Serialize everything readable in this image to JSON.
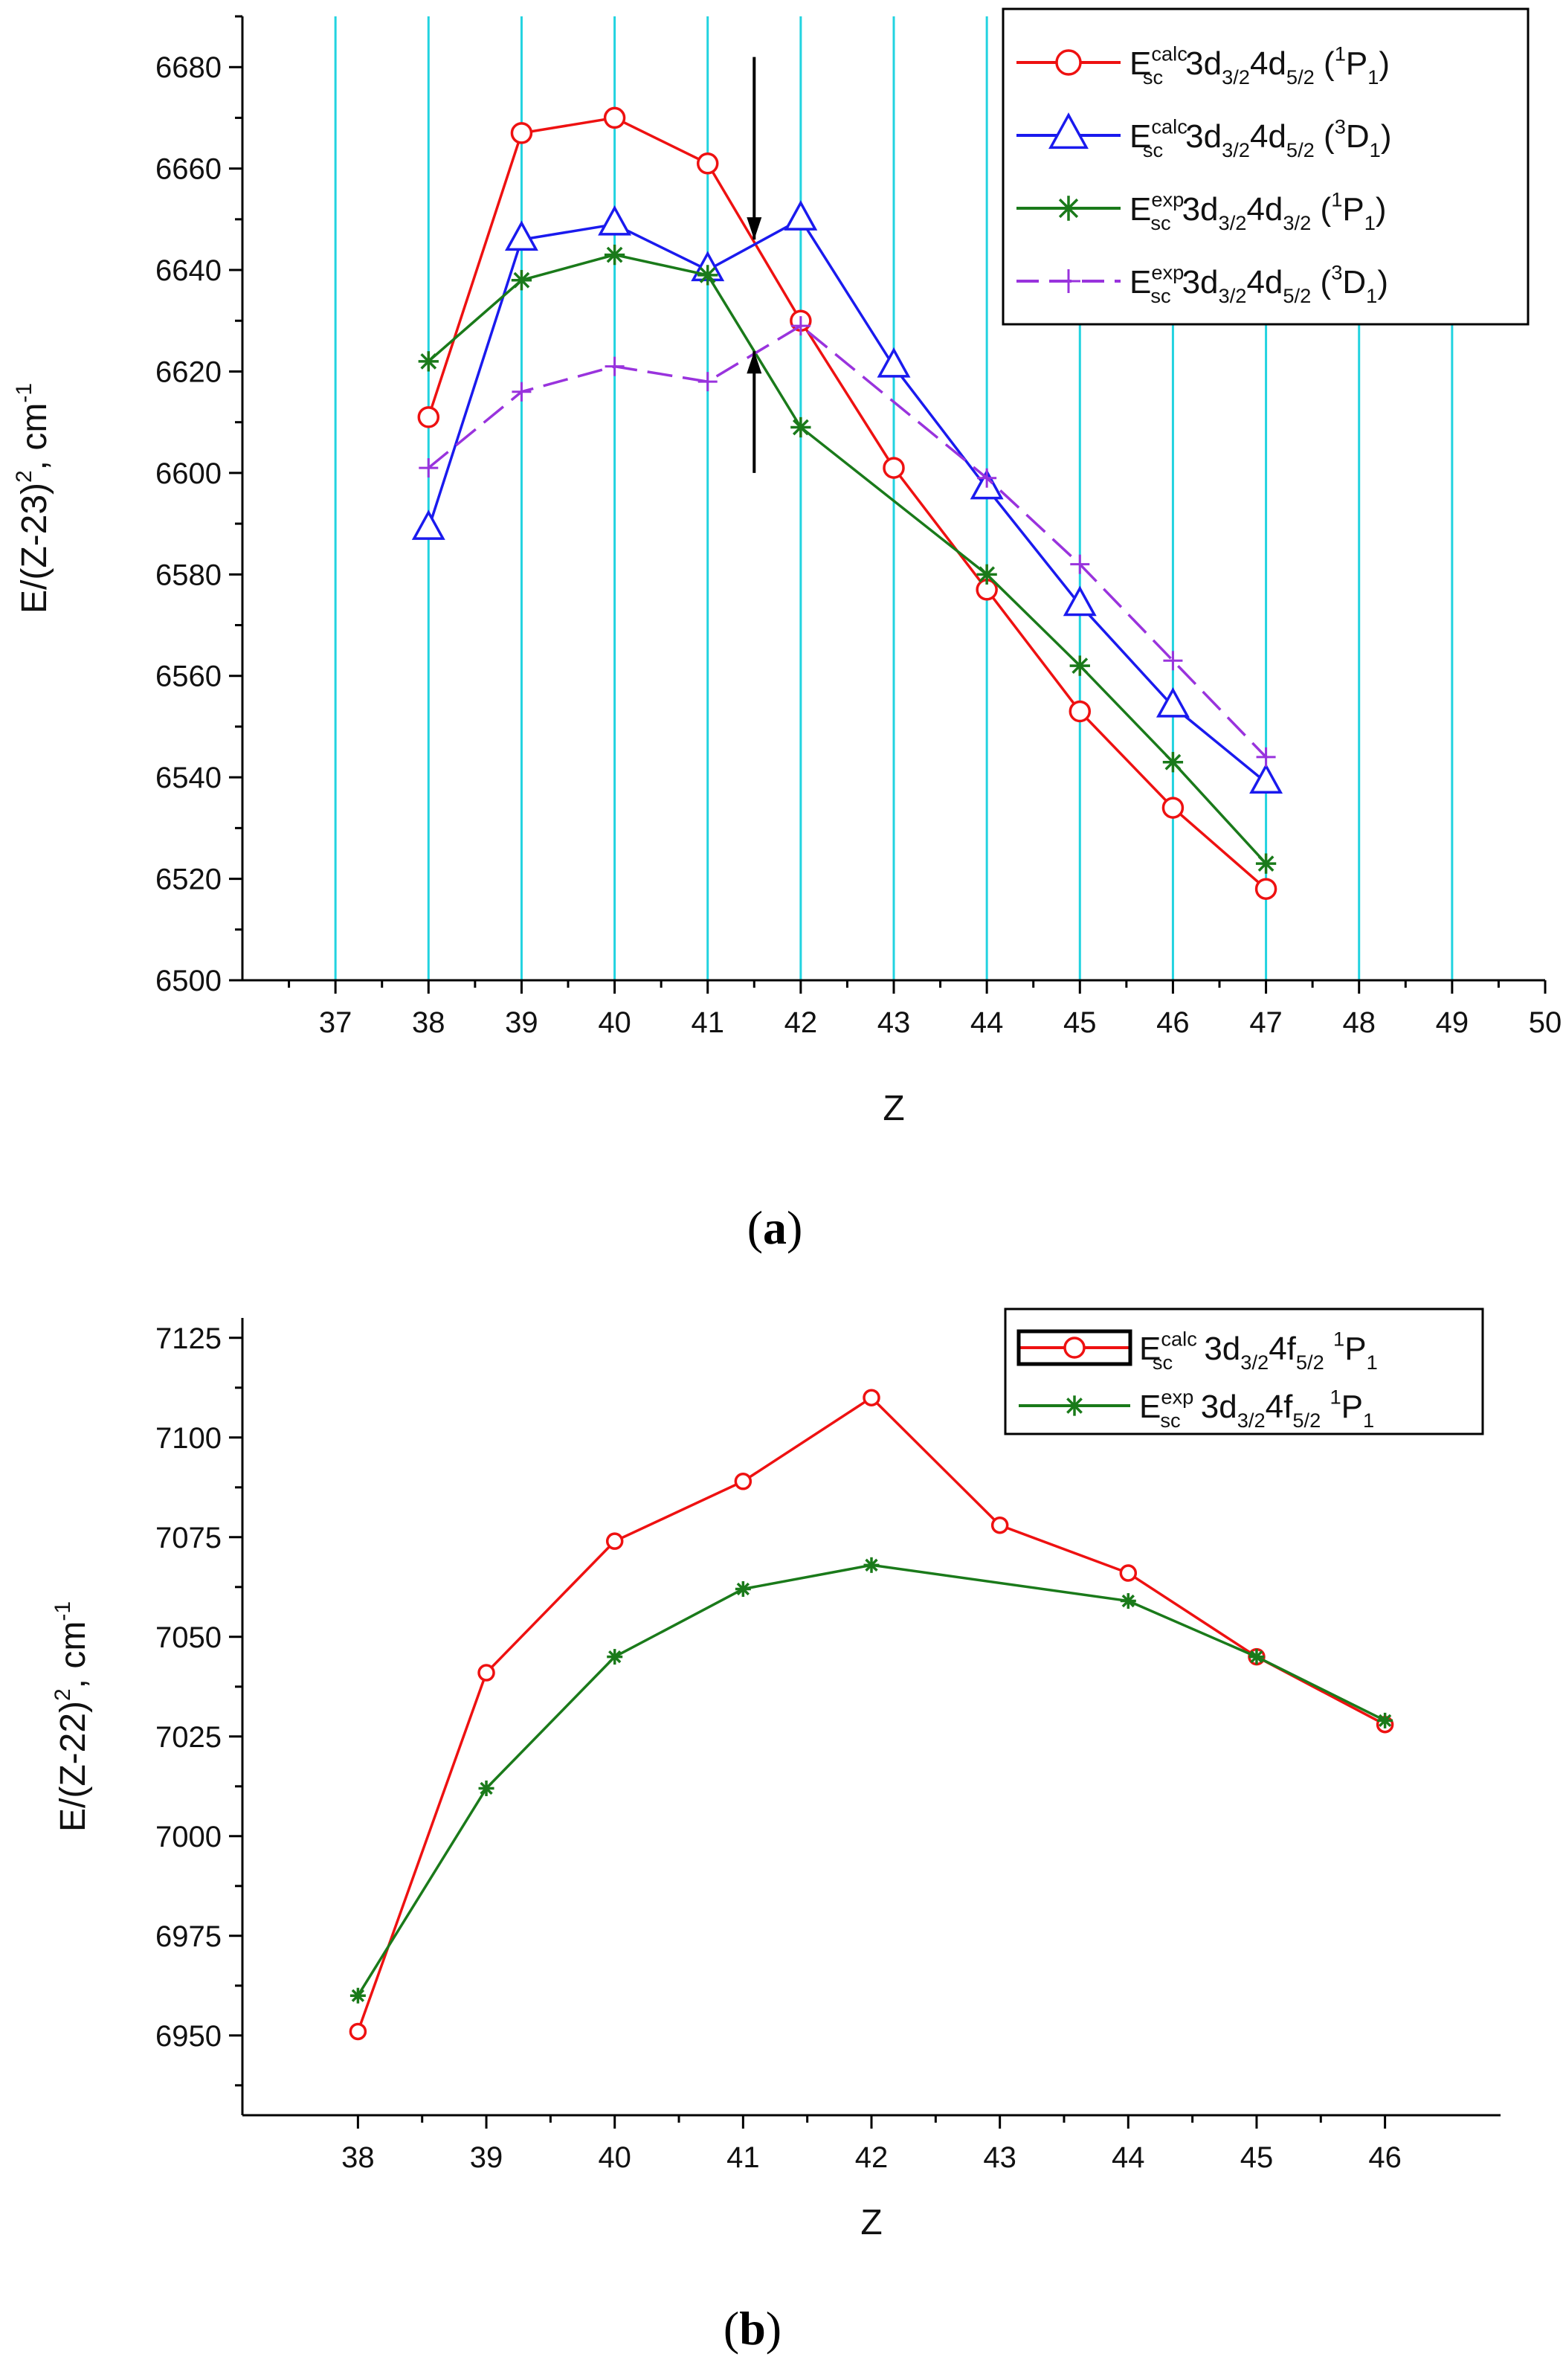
{
  "chart_data": [
    {
      "id": "a",
      "type": "line",
      "caption": {
        "open": "(",
        "letter": "a",
        "close": ")"
      },
      "xlabel": "Z",
      "ylabel": {
        "text": "E/(Z-23)",
        "sup": "2",
        "rest": ", cm",
        "unit_sup": "-1"
      },
      "xlim": [
        36,
        50
      ],
      "ylim": [
        6500,
        6690
      ],
      "xticks": [
        37,
        38,
        39,
        40,
        41,
        42,
        43,
        44,
        45,
        46,
        47,
        48,
        49,
        50
      ],
      "yticks": [
        6500,
        6520,
        6540,
        6560,
        6580,
        6600,
        6620,
        6640,
        6660,
        6680
      ],
      "vertical_grid": [
        37,
        38,
        39,
        40,
        41,
        42,
        43,
        44,
        45,
        46,
        47,
        48,
        49
      ],
      "legend_position": "top-right",
      "annotations": [
        {
          "type": "arrow-down",
          "x": 41.5,
          "y_from": 6682,
          "y_to": 6646
        },
        {
          "type": "arrow-up",
          "x": 41.5,
          "y_from": 6600,
          "y_to": 6624
        }
      ],
      "series": [
        {
          "name": {
            "E": "E",
            "sup": "calc",
            "sub": "sc",
            "cfg": "3d",
            "s1": "3/2",
            "mid": "4d",
            "s2": "5/2",
            "lp": " (",
            "msup": "1",
            "L": "P",
            "msub": "1",
            "rp": ")"
          },
          "color": "#ee1111",
          "marker": "circle",
          "dash": "none",
          "x": [
            38,
            39,
            40,
            41,
            42,
            43,
            44,
            45,
            46,
            47
          ],
          "y": [
            6611,
            6667,
            6670,
            6661,
            6630,
            6601,
            6577,
            6553,
            6534,
            6518
          ]
        },
        {
          "name": {
            "E": "E",
            "sup": "calc",
            "sub": "sc",
            "cfg": "3d",
            "s1": "3/2",
            "mid": "4d",
            "s2": "5/2",
            "lp": " (",
            "msup": "3",
            "L": "D",
            "msub": "1",
            "rp": ")"
          },
          "color": "#1a1aee",
          "marker": "triangle",
          "dash": "none",
          "x": [
            38,
            39,
            40,
            41,
            42,
            43,
            44,
            45,
            46,
            47
          ],
          "y": [
            6589,
            6646,
            6649,
            6640,
            6650,
            6621,
            6597,
            6574,
            6554,
            6539
          ]
        },
        {
          "name": {
            "E": "E",
            "sup": "exp",
            "sub": "sc",
            "cfg": "3d",
            "s1": "3/2",
            "mid": "4d",
            "s2": "3/2",
            "lp": " (",
            "msup": "1",
            "L": "P",
            "msub": "1",
            "rp": ")"
          },
          "color": "#1a7a1a",
          "marker": "star",
          "dash": "none",
          "x": [
            38,
            39,
            40,
            41,
            42,
            44,
            45,
            46,
            47
          ],
          "y": [
            6622,
            6638,
            6643,
            6639,
            6609,
            6580,
            6562,
            6543,
            6523
          ]
        },
        {
          "name": {
            "E": "E",
            "sup": "exp",
            "sub": "sc",
            "cfg": "3d",
            "s1": "3/2",
            "mid": "4d",
            "s2": "5/2",
            "lp": " (",
            "msup": "3",
            "L": "D",
            "msub": "1",
            "rp": ")"
          },
          "color": "#9933dd",
          "marker": "plus",
          "dash": "dash",
          "x": [
            38,
            39,
            40,
            41,
            42,
            44,
            45,
            46,
            47
          ],
          "y": [
            6601,
            6616,
            6621,
            6618,
            6629,
            6599,
            6582,
            6563,
            6544
          ]
        }
      ]
    },
    {
      "id": "b",
      "type": "line",
      "caption": {
        "open": "(",
        "letter": "b",
        "close": ")"
      },
      "xlabel": "Z",
      "ylabel": {
        "text": "E/(Z-22)",
        "sup": "2",
        "rest": ", cm",
        "unit_sup": "-1"
      },
      "xlim": [
        37.1,
        46.9
      ],
      "ylim": [
        6930,
        7130
      ],
      "xticks": [
        38,
        39,
        40,
        41,
        42,
        43,
        44,
        45,
        46
      ],
      "yticks": [
        6950,
        6975,
        7000,
        7025,
        7050,
        7075,
        7100,
        7125
      ],
      "legend_position": "top-right",
      "series": [
        {
          "name": {
            "E": "E",
            "sup": "calc",
            "sub": "sc",
            "cfg": " 3d",
            "s1": "3/2",
            "mid": "4f",
            "s2": "5/2",
            "lp": " ",
            "msup": "1",
            "L": "P",
            "msub": "1",
            "rp": ""
          },
          "color": "#ee1111",
          "marker": "circle",
          "dash": "none",
          "x": [
            38,
            39,
            40,
            41,
            42,
            43,
            44,
            45,
            46
          ],
          "y": [
            6951,
            7041,
            7074,
            7089,
            7110,
            7078,
            7066,
            7045,
            7028
          ]
        },
        {
          "name": {
            "E": "E",
            "sup": "exp",
            "sub": "sc",
            "cfg": " 3d",
            "s1": "3/2",
            "mid": "4f",
            "s2": "5/2",
            "lp": " ",
            "msup": "1",
            "L": "P",
            "msub": "1",
            "rp": ""
          },
          "color": "#1a7a1a",
          "marker": "star",
          "dash": "none",
          "x": [
            38,
            39,
            40,
            41,
            42,
            44,
            45,
            46
          ],
          "y": [
            6960,
            7012,
            7045,
            7062,
            7068,
            7059,
            7045,
            7029
          ]
        }
      ]
    }
  ]
}
